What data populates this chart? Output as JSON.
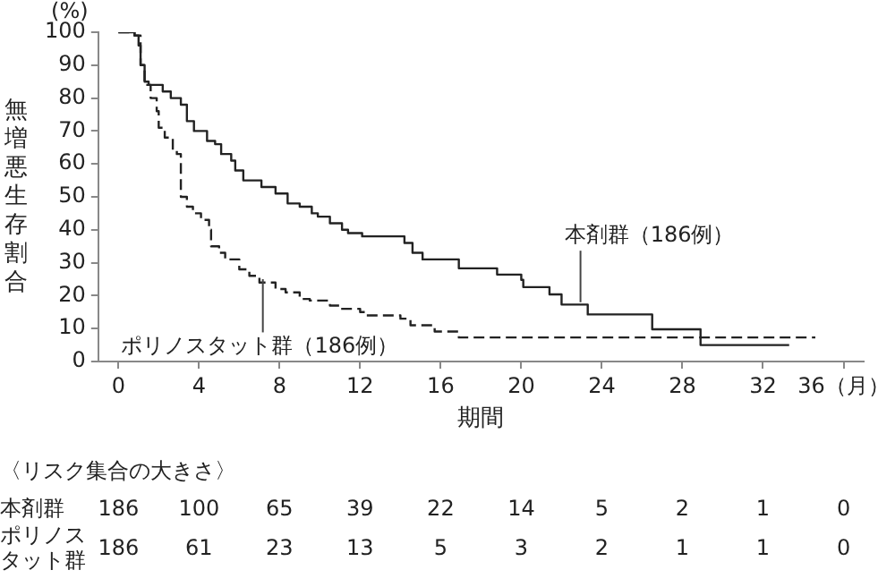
{
  "chart_data": {
    "type": "step",
    "xlabel": "期間",
    "ylabel": "無増悪生存割合",
    "xlim": [
      -1,
      37
    ],
    "xticks": [
      0,
      4,
      8,
      12,
      16,
      20,
      24,
      28,
      32,
      {
        "value": 36,
        "label": "36（月）"
      }
    ],
    "ylim": [
      0,
      100
    ],
    "yticks": [
      0,
      10,
      20,
      30,
      40,
      50,
      60,
      70,
      80,
      90,
      100
    ],
    "grid": false,
    "legend": false,
    "marker": "none",
    "series": [
      {
        "name": "本剤群（186例）",
        "color": "#222222",
        "line_style": "solid",
        "x": [
          0,
          0.8,
          1,
          1.1,
          1.3,
          1.5,
          2.2,
          2.6,
          3.1,
          3.4,
          3.75,
          4.4,
          4.8,
          5.1,
          5.6,
          5.8,
          6.2,
          7.1,
          7.8,
          8.4,
          9,
          9.6,
          9.9,
          10.5,
          11.1,
          11.4,
          12.1,
          14.2,
          14.6,
          15.1,
          16.9,
          18.8,
          20,
          20.1,
          21.4,
          22,
          23.3,
          26.5,
          28.9,
          33.3
        ],
        "values": [
          100,
          99,
          96,
          90,
          85,
          84,
          82,
          80,
          78,
          73,
          70,
          67,
          66,
          63,
          61,
          58,
          55,
          53,
          51,
          48,
          47,
          45,
          44,
          42,
          40,
          39,
          38,
          36,
          33,
          31,
          28.3,
          26.4,
          24.8,
          22.6,
          20.4,
          17.3,
          14.3,
          9.8,
          5,
          5
        ]
      },
      {
        "name": "ポリノスタット群（186例）",
        "color": "#222222",
        "line_style": "dashed",
        "x": [
          0,
          0.8,
          1.1,
          1.3,
          1.6,
          1.9,
          2,
          2.3,
          2.7,
          2.9,
          3.1,
          3.4,
          3.7,
          4.1,
          4.5,
          4.6,
          5,
          5.3,
          6,
          6.5,
          7,
          7.8,
          8.3,
          9,
          9.5,
          10.5,
          11,
          12,
          12.3,
          14,
          14.5,
          15.7,
          16.9,
          34.6
        ],
        "values": [
          100,
          99,
          90,
          84,
          80,
          76,
          71,
          68,
          64,
          63,
          50,
          47,
          45,
          43,
          40,
          35,
          33,
          31,
          28,
          26,
          24,
          22,
          21,
          19,
          18.5,
          17,
          16,
          15,
          14,
          13,
          11,
          9.1,
          7.3,
          7.3
        ]
      }
    ],
    "annotations": [
      "(%)",
      "〈リスク集合の大きさ〉",
      "本剤群 186 100 65 39 22 14 5 2 1 0",
      "ポリノスタット群 186 61 23 13 5 3 2 1 1 0"
    ]
  }
}
